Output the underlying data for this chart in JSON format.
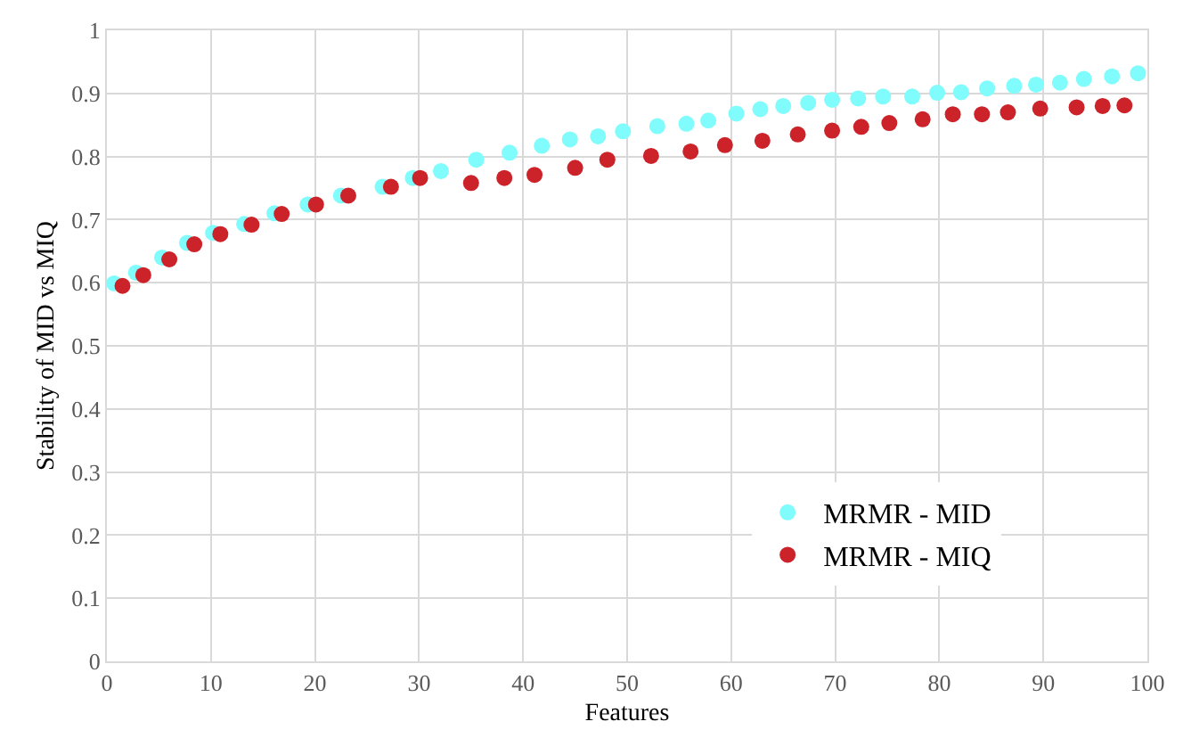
{
  "chart_data": {
    "type": "scatter",
    "xlabel": "Features",
    "ylabel": "Stability of MID vs MIQ",
    "xlim": [
      0,
      100
    ],
    "ylim": [
      0,
      1
    ],
    "xticks": [
      0,
      10,
      20,
      30,
      40,
      50,
      60,
      70,
      80,
      90,
      100
    ],
    "yticks": [
      0,
      0.1,
      0.2,
      0.3,
      0.4,
      0.5,
      0.6,
      0.7,
      0.8,
      0.9,
      1
    ],
    "grid": true,
    "legend": "bottom right",
    "marker": "circle",
    "series": [
      {
        "name": "MRMR - MID",
        "color": "#80fcfc",
        "x": [
          0.7,
          2.8,
          5.3,
          7.7,
          10.2,
          13.2,
          16.1,
          19.3,
          22.5,
          26.5,
          29.4,
          32.1,
          35.5,
          38.7,
          41.8,
          44.5,
          47.2,
          49.6,
          52.9,
          55.7,
          57.8,
          60.5,
          62.8,
          65.0,
          67.4,
          69.7,
          72.2,
          74.6,
          77.4,
          79.8,
          82.1,
          84.6,
          87.2,
          89.3,
          91.6,
          93.9,
          96.6,
          99.1
        ],
        "values": [
          0.599,
          0.616,
          0.64,
          0.663,
          0.679,
          0.693,
          0.71,
          0.724,
          0.738,
          0.752,
          0.766,
          0.777,
          0.795,
          0.806,
          0.817,
          0.827,
          0.832,
          0.84,
          0.848,
          0.852,
          0.857,
          0.868,
          0.875,
          0.88,
          0.885,
          0.89,
          0.892,
          0.895,
          0.895,
          0.901,
          0.902,
          0.908,
          0.912,
          0.914,
          0.917,
          0.923,
          0.927,
          0.932
        ]
      },
      {
        "name": "MRMR - MIQ",
        "color": "#cc2229",
        "x": [
          1.5,
          3.5,
          6.0,
          8.4,
          10.9,
          13.9,
          16.8,
          20.1,
          23.2,
          27.3,
          30.1,
          35.0,
          38.2,
          41.1,
          45.0,
          48.1,
          52.3,
          56.1,
          59.4,
          63.0,
          66.4,
          69.7,
          72.5,
          75.2,
          78.4,
          81.3,
          84.1,
          86.6,
          89.7,
          93.2,
          95.7,
          97.8
        ],
        "values": [
          0.595,
          0.612,
          0.637,
          0.661,
          0.677,
          0.692,
          0.709,
          0.724,
          0.738,
          0.752,
          0.766,
          0.758,
          0.766,
          0.771,
          0.782,
          0.795,
          0.801,
          0.808,
          0.818,
          0.825,
          0.835,
          0.841,
          0.847,
          0.853,
          0.859,
          0.867,
          0.867,
          0.87,
          0.876,
          0.878,
          0.88,
          0.881
        ]
      }
    ]
  }
}
